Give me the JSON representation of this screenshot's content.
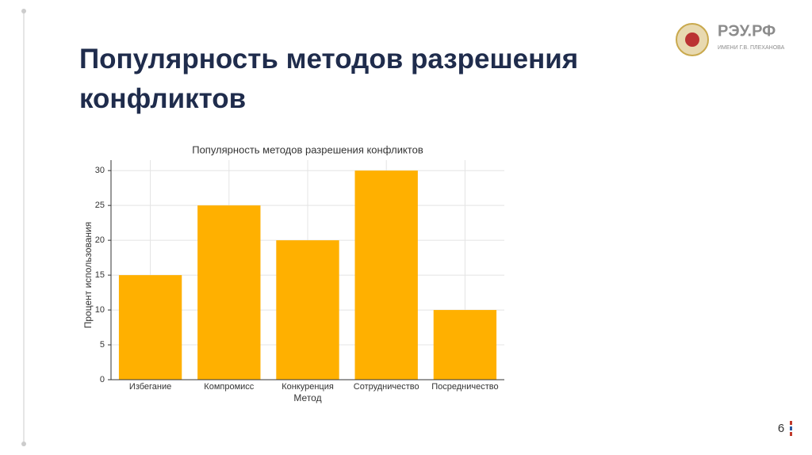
{
  "slide": {
    "title": [
      "Популярность методов разрешения",
      "конфликтов"
    ],
    "logo_text": "РЭУ.РФ",
    "logo_subtext": "ИМЕНИ Г.В. ПЛЕХАНОВА",
    "page_number": "6"
  },
  "chart_data": {
    "type": "bar",
    "title": "Популярность методов разрешения конфликтов",
    "x_label": "Метод",
    "y_label": "Процент использования",
    "categories": [
      "Избегание",
      "Компромисс",
      "Конкуренция",
      "Сотрудничество",
      "Посредничество"
    ],
    "values": [
      15,
      25,
      20,
      30,
      10
    ],
    "color": "#ffb000",
    "ylim": [
      0,
      31.5
    ],
    "yticks": [
      0,
      5,
      10,
      15,
      20,
      25,
      30
    ],
    "grid": true
  }
}
